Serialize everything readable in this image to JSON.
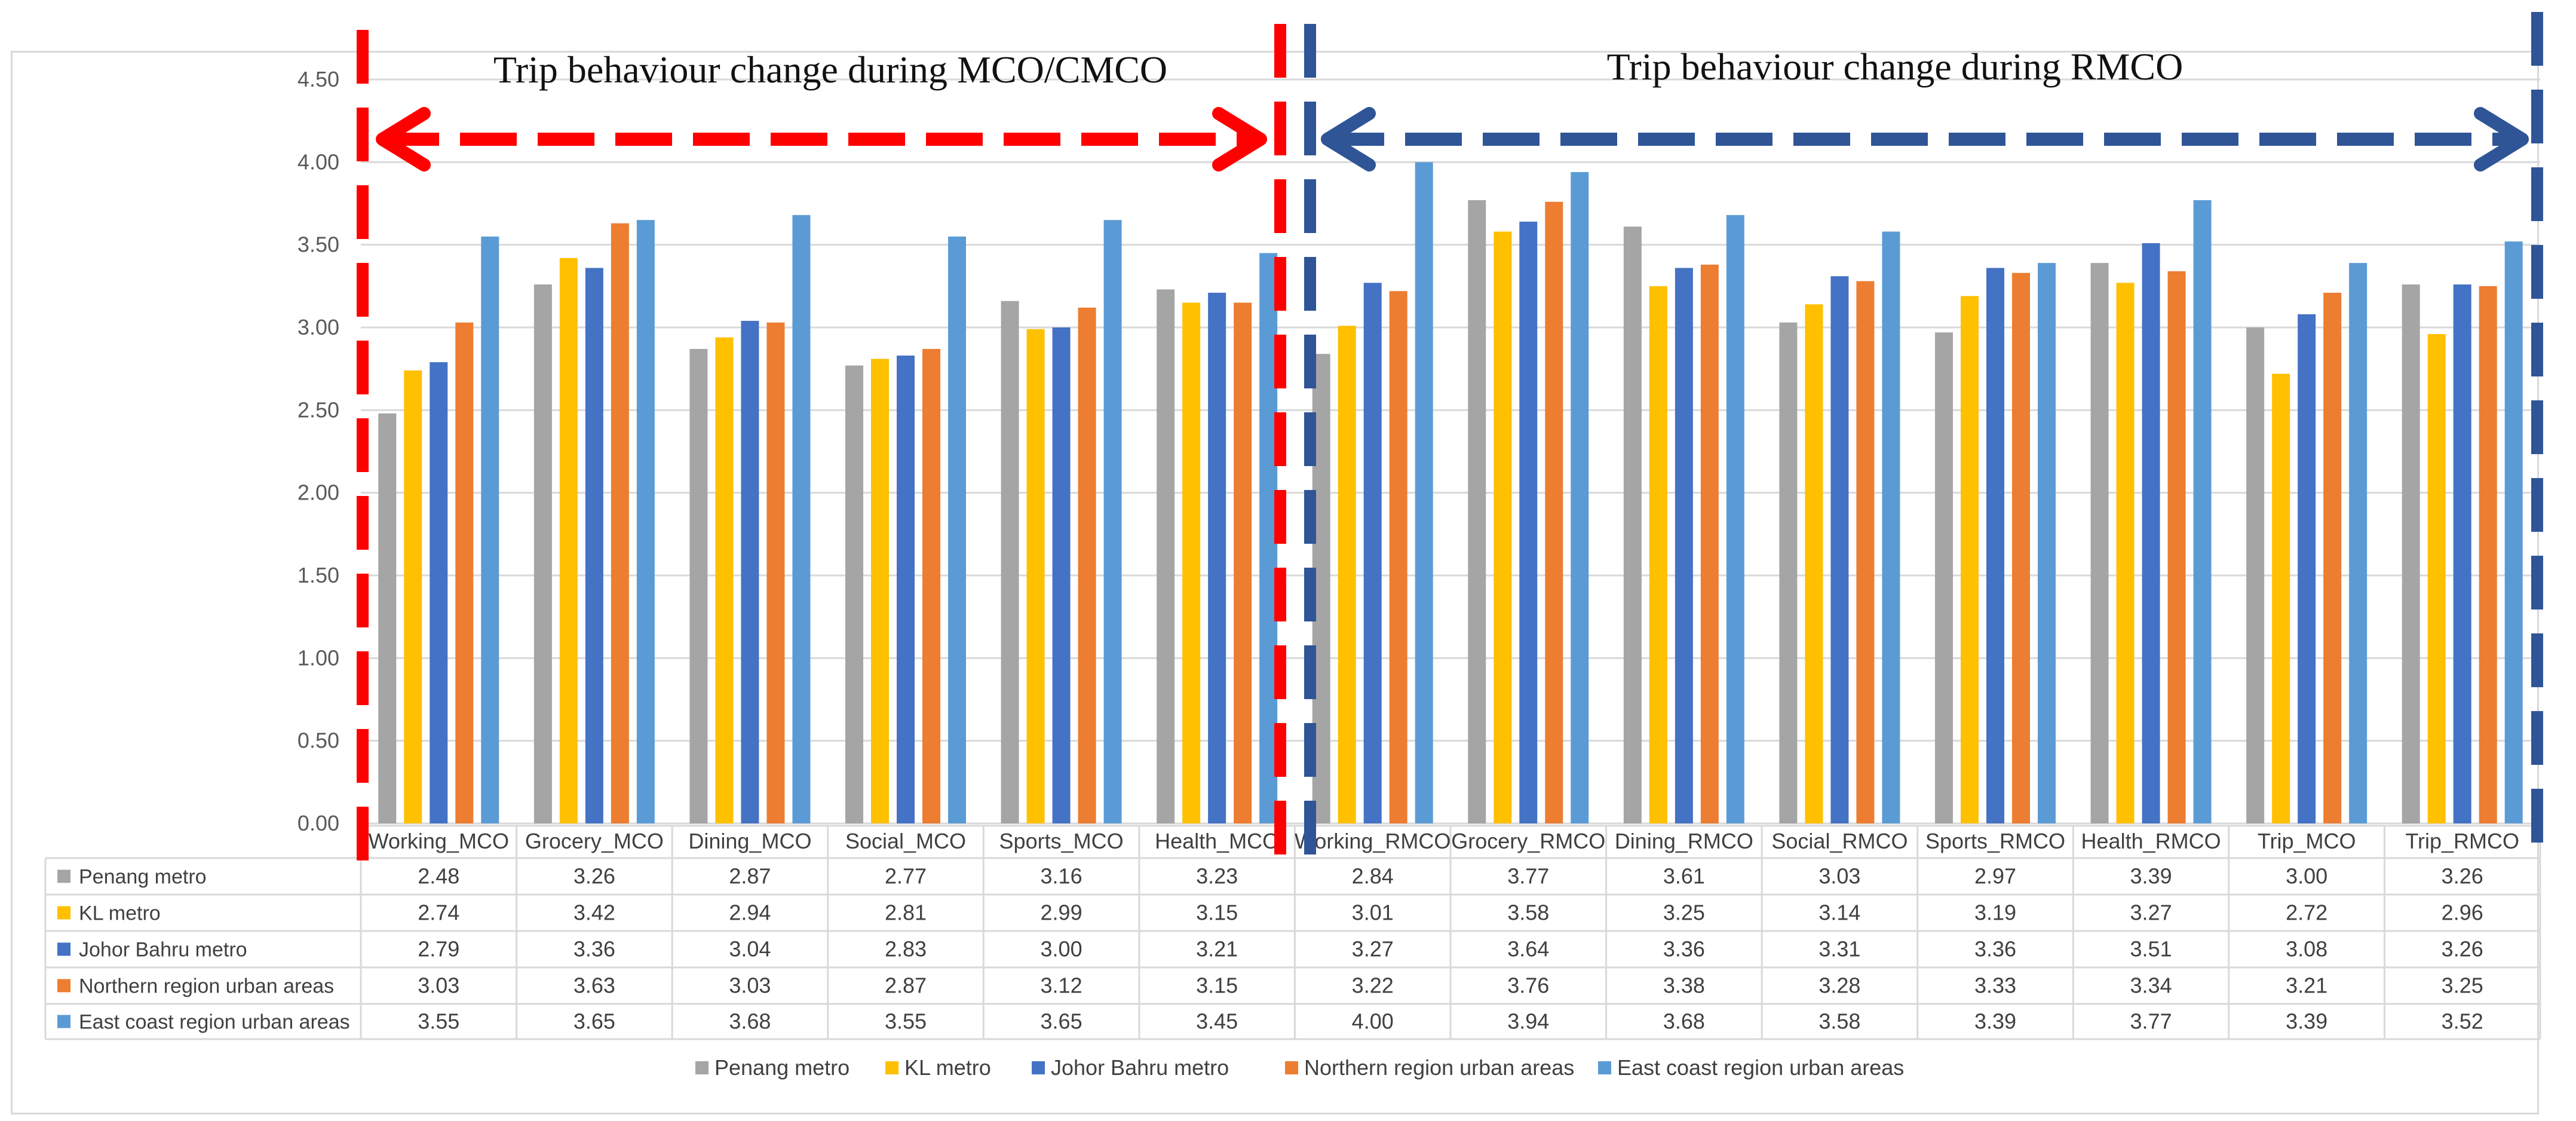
{
  "chart_data": {
    "type": "bar",
    "title": "",
    "xlabel": "",
    "ylabel": "",
    "ylim": [
      0,
      4.5
    ],
    "yticks": [
      "0.00",
      "0.50",
      "1.00",
      "1.50",
      "2.00",
      "2.50",
      "3.00",
      "3.50",
      "4.00",
      "4.50"
    ],
    "grid": true,
    "legend_position": "bottom",
    "data_table": true,
    "categories": [
      "Working_MCO",
      "Grocery_MCO",
      "Dining_MCO",
      "Social_MCO",
      "Sports_MCO",
      "Health_MCO",
      "Working_RMCO",
      "Grocery_RMCO",
      "Dining_RMCO",
      "Social_RMCO",
      "Sports_RMCO",
      "Health_RMCO",
      "Trip_MCO",
      "Trip_RMCO"
    ],
    "series": [
      {
        "name": "Penang metro",
        "color": "#a5a5a5",
        "values": [
          2.48,
          3.26,
          2.87,
          2.77,
          3.16,
          3.23,
          2.84,
          3.77,
          3.61,
          3.03,
          2.97,
          3.39,
          3.0,
          3.26
        ],
        "labels": [
          "2.48",
          "3.26",
          "2.87",
          "2.77",
          "3.16",
          "3.23",
          "2.84",
          "3.77",
          "3.61",
          "3.03",
          "2.97",
          "3.39",
          "3.00",
          "3.26"
        ]
      },
      {
        "name": "KL metro",
        "color": "#ffc000",
        "values": [
          2.74,
          3.42,
          2.94,
          2.81,
          2.99,
          3.15,
          3.01,
          3.58,
          3.25,
          3.14,
          3.19,
          3.27,
          2.72,
          2.96
        ],
        "labels": [
          "2.74",
          "3.42",
          "2.94",
          "2.81",
          "2.99",
          "3.15",
          "3.01",
          "3.58",
          "3.25",
          "3.14",
          "3.19",
          "3.27",
          "2.72",
          "2.96"
        ]
      },
      {
        "name": "Johor Bahru metro",
        "color": "#4472c4",
        "values": [
          2.79,
          3.36,
          3.04,
          2.83,
          3.0,
          3.21,
          3.27,
          3.64,
          3.36,
          3.31,
          3.36,
          3.51,
          3.08,
          3.26
        ],
        "labels": [
          "2.79",
          "3.36",
          "3.04",
          "2.83",
          "3.00",
          "3.21",
          "3.27",
          "3.64",
          "3.36",
          "3.31",
          "3.36",
          "3.51",
          "3.08",
          "3.26"
        ]
      },
      {
        "name": "Northern region urban areas",
        "color": "#ed7d31",
        "values": [
          3.03,
          3.63,
          3.03,
          2.87,
          3.12,
          3.15,
          3.22,
          3.76,
          3.38,
          3.28,
          3.33,
          3.34,
          3.21,
          3.25
        ],
        "labels": [
          "3.03",
          "3.63",
          "3.03",
          "2.87",
          "3.12",
          "3.15",
          "3.22",
          "3.76",
          "3.38",
          "3.28",
          "3.33",
          "3.34",
          "3.21",
          "3.25"
        ]
      },
      {
        "name": "East coast region urban areas",
        "color": "#5b9bd5",
        "values": [
          3.55,
          3.65,
          3.68,
          3.55,
          3.65,
          3.45,
          4.0,
          3.94,
          3.68,
          3.58,
          3.39,
          3.77,
          3.39,
          3.52
        ],
        "labels": [
          "3.55",
          "3.65",
          "3.68",
          "3.55",
          "3.65",
          "3.45",
          "4.00",
          "3.94",
          "3.68",
          "3.58",
          "3.39",
          "3.77",
          "3.39",
          "3.52"
        ]
      }
    ],
    "annotations": [
      {
        "text": "Trip behaviour change during MCO/CMCO",
        "color": "#ff0000",
        "spans": "Working_MCO to Health_MCO"
      },
      {
        "text": "Trip behaviour change during RMCO",
        "color": "#2f5597",
        "spans": "Working_RMCO to Trip_RMCO"
      }
    ]
  }
}
